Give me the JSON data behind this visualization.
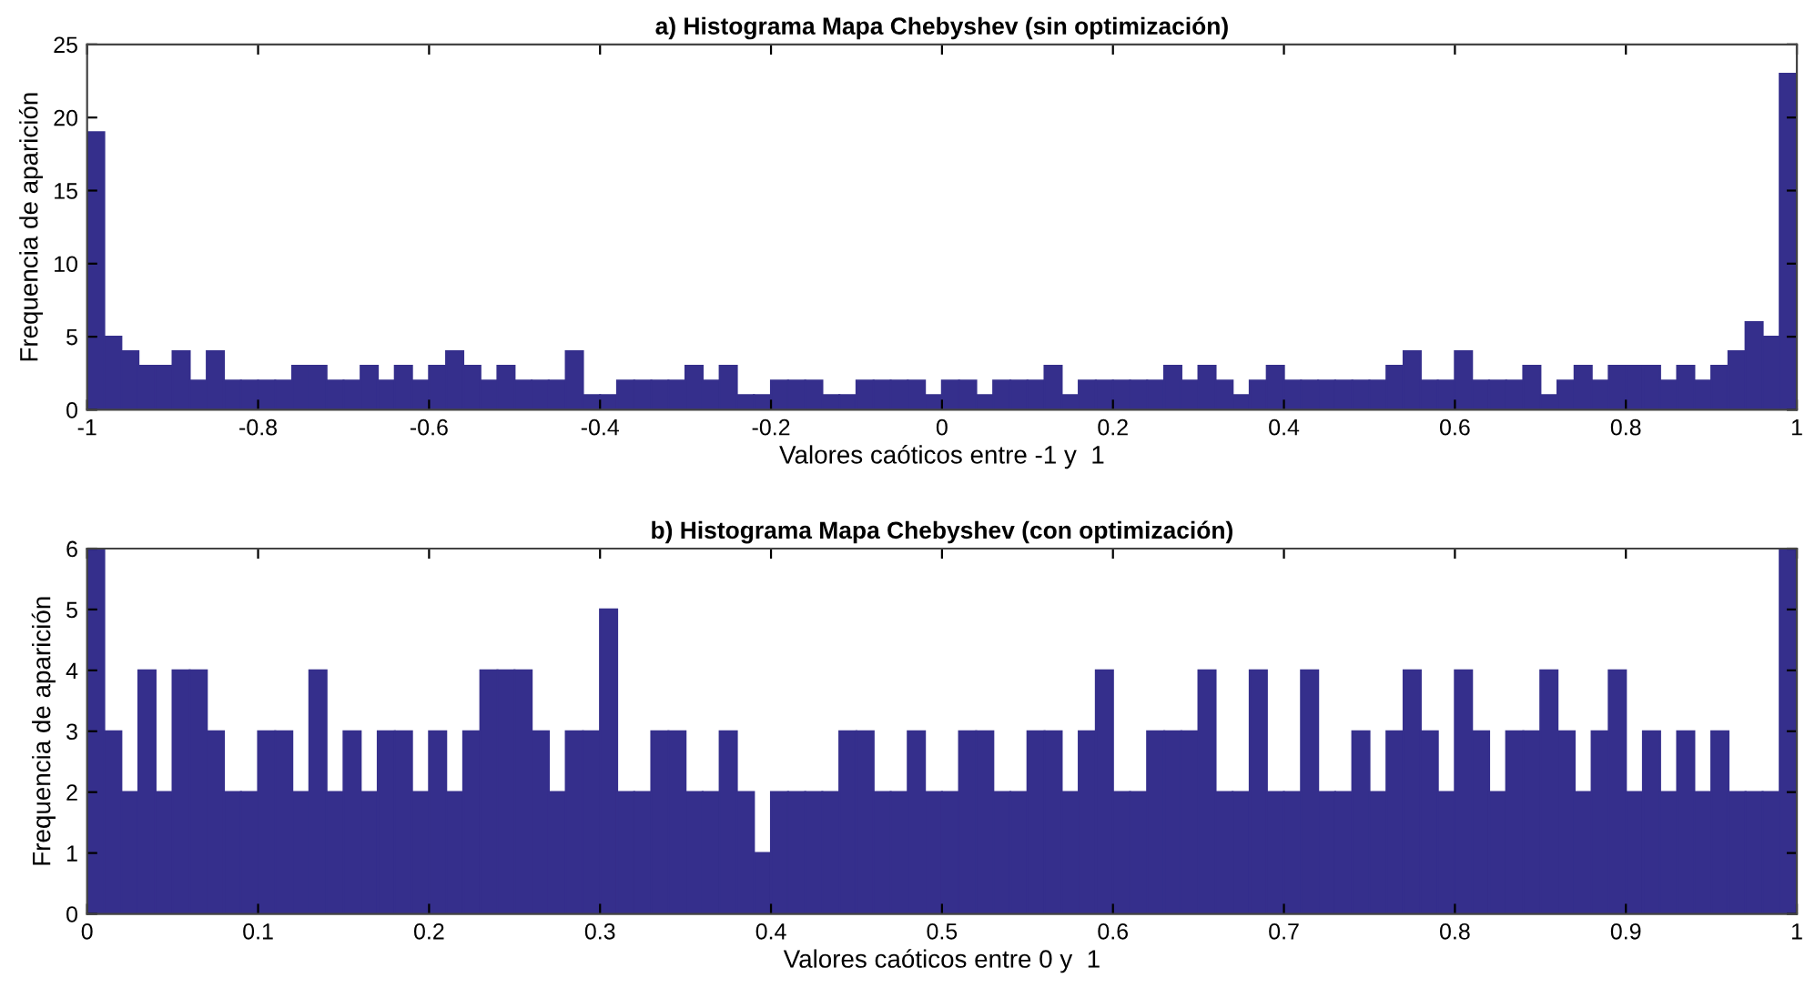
{
  "chart_data": [
    {
      "type": "histogram",
      "title": "a) Histograma Mapa Chebyshev (sin optimización)",
      "xlabel": "Valores caóticos entre -1 y  1",
      "ylabel": "Frequencia de aparición",
      "color": "#352f8c",
      "bins": [
        -1.0,
        -0.98,
        -0.96,
        -0.94,
        -0.92,
        -0.9,
        -0.88,
        -0.86,
        -0.84,
        -0.82,
        -0.8,
        -0.78,
        -0.76,
        -0.74,
        -0.72,
        -0.7,
        -0.68,
        -0.66,
        -0.64,
        -0.62,
        -0.6,
        -0.58,
        -0.56,
        -0.54,
        -0.52,
        -0.5,
        -0.48,
        -0.46,
        -0.44,
        -0.42,
        -0.4,
        -0.38,
        -0.36,
        -0.34,
        -0.32,
        -0.3,
        -0.28,
        -0.26,
        -0.24,
        -0.22,
        -0.2,
        -0.18,
        -0.16,
        -0.14,
        -0.12,
        -0.1,
        -0.08,
        -0.06,
        -0.04,
        -0.02,
        0.0,
        0.02,
        0.04,
        0.06,
        0.08,
        0.1,
        0.12,
        0.14,
        0.16,
        0.18,
        0.2,
        0.22,
        0.24,
        0.26,
        0.28,
        0.3,
        0.32,
        0.34,
        0.36,
        0.38,
        0.4,
        0.42,
        0.44,
        0.46,
        0.48,
        0.5,
        0.52,
        0.54,
        0.56,
        0.58,
        0.6,
        0.62,
        0.64,
        0.66,
        0.68,
        0.7,
        0.72,
        0.74,
        0.76,
        0.78,
        0.8,
        0.82,
        0.84,
        0.86,
        0.88,
        0.9,
        0.92,
        0.94,
        0.96,
        0.98,
        1.0
      ],
      "values": [
        19,
        5,
        4,
        3,
        3,
        4,
        2,
        4,
        2,
        2,
        2,
        2,
        3,
        3,
        2,
        2,
        3,
        2,
        3,
        2,
        3,
        4,
        3,
        2,
        3,
        2,
        2,
        2,
        4,
        1,
        1,
        2,
        2,
        2,
        2,
        3,
        2,
        3,
        1,
        1,
        2,
        2,
        2,
        1,
        1,
        2,
        2,
        2,
        2,
        1,
        2,
        2,
        1,
        2,
        2,
        2,
        3,
        1,
        2,
        2,
        2,
        2,
        2,
        3,
        2,
        3,
        2,
        1,
        2,
        3,
        2,
        2,
        2,
        2,
        2,
        2,
        3,
        4,
        2,
        2,
        4,
        2,
        2,
        2,
        3,
        1,
        2,
        3,
        2,
        3,
        3,
        3,
        2,
        3,
        2,
        3,
        4,
        6,
        5,
        23
      ],
      "xlim": [
        -1,
        1
      ],
      "xticks": [
        -1,
        -0.8,
        -0.6,
        -0.4,
        -0.2,
        0,
        0.2,
        0.4,
        0.6,
        0.8,
        1
      ],
      "ylim": [
        0,
        25
      ],
      "yticks": [
        0,
        5,
        10,
        15,
        20,
        25
      ],
      "grid": false
    },
    {
      "type": "histogram",
      "title": "b) Histograma Mapa Chebyshev (con optimización)",
      "xlabel": "Valores caóticos entre 0 y  1",
      "ylabel": "Frequencia de aparición",
      "color": "#352f8c",
      "bins": [
        0.0,
        0.01,
        0.02,
        0.03,
        0.04,
        0.05,
        0.06,
        0.07,
        0.08,
        0.09,
        0.1,
        0.11,
        0.12,
        0.13,
        0.14,
        0.15,
        0.16,
        0.17,
        0.18,
        0.19,
        0.2,
        0.21,
        0.22,
        0.23,
        0.24,
        0.25,
        0.26,
        0.27,
        0.28,
        0.29,
        0.3,
        0.31,
        0.32,
        0.33,
        0.34,
        0.35,
        0.36,
        0.37,
        0.38,
        0.39,
        0.4,
        0.41,
        0.42,
        0.43,
        0.44,
        0.45,
        0.46,
        0.47,
        0.48,
        0.49,
        0.5,
        0.51,
        0.52,
        0.53,
        0.54,
        0.55,
        0.56,
        0.57,
        0.58,
        0.59,
        0.6,
        0.61,
        0.62,
        0.63,
        0.64,
        0.65,
        0.66,
        0.67,
        0.68,
        0.69,
        0.7,
        0.71,
        0.72,
        0.73,
        0.74,
        0.75,
        0.76,
        0.77,
        0.78,
        0.79,
        0.8,
        0.81,
        0.82,
        0.83,
        0.84,
        0.85,
        0.86,
        0.87,
        0.88,
        0.89,
        0.9,
        0.91,
        0.92,
        0.93,
        0.94,
        0.95,
        0.96,
        0.97,
        0.98,
        0.99,
        1.0
      ],
      "values": [
        6,
        3,
        2,
        4,
        2,
        4,
        4,
        3,
        2,
        2,
        3,
        3,
        2,
        4,
        2,
        3,
        2,
        3,
        3,
        2,
        3,
        2,
        3,
        4,
        4,
        4,
        3,
        2,
        3,
        3,
        5,
        2,
        2,
        3,
        3,
        2,
        2,
        3,
        2,
        1,
        2,
        2,
        2,
        2,
        3,
        3,
        2,
        2,
        3,
        2,
        2,
        3,
        3,
        2,
        2,
        3,
        3,
        2,
        3,
        4,
        2,
        2,
        3,
        3,
        3,
        4,
        2,
        2,
        4,
        2,
        2,
        4,
        2,
        2,
        3,
        2,
        3,
        4,
        3,
        2,
        4,
        3,
        2,
        3,
        3,
        4,
        3,
        2,
        3,
        4,
        2,
        3,
        2,
        3,
        2,
        3,
        2,
        2,
        2,
        6
      ],
      "xlim": [
        0,
        1
      ],
      "xticks": [
        0,
        0.1,
        0.2,
        0.3,
        0.4,
        0.5,
        0.6,
        0.7,
        0.8,
        0.9,
        1
      ],
      "ylim": [
        0,
        6
      ],
      "yticks": [
        0,
        1,
        2,
        3,
        4,
        5,
        6
      ],
      "grid": false
    }
  ]
}
